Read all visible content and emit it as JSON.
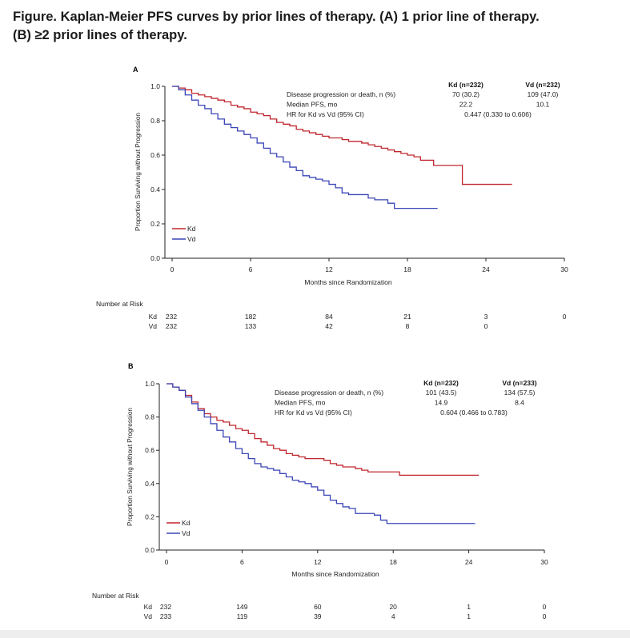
{
  "figure": {
    "title_line1": "Figure. Kaplan-Meier PFS curves by prior lines of therapy. (A) 1 prior line of therapy.",
    "title_line2": "(B) ≥2 prior lines of therapy."
  },
  "colors": {
    "kd": "#c0262d",
    "vd": "#3b46b6",
    "axis": "#222222"
  },
  "chart_data": [
    {
      "type": "line",
      "panel_label": "A",
      "xlabel": "Months since Randomization",
      "ylabel": "Proportion Surviving without Progression",
      "xlim": [
        0,
        30
      ],
      "ylim": [
        0.0,
        1.0
      ],
      "xticks": [
        0,
        6,
        12,
        18,
        24,
        30
      ],
      "xtick_labels": [
        "0",
        "6",
        "12",
        "18",
        "24",
        "30"
      ],
      "yticks": [
        0.0,
        0.2,
        0.4,
        0.6,
        0.8,
        1.0
      ],
      "ytick_labels": [
        "0.0",
        "0.2",
        "0.4",
        "0.6",
        "0.8",
        "1.0"
      ],
      "legend": [
        "Kd",
        "Vd"
      ],
      "series": [
        {
          "name": "Kd",
          "x": [
            0,
            0.5,
            1,
            1.5,
            2,
            2.5,
            3,
            3.5,
            4,
            4.5,
            5,
            5.5,
            6,
            6.5,
            7,
            7.5,
            8,
            8.5,
            9,
            9.5,
            10,
            10.5,
            11,
            11.5,
            12,
            12.5,
            13,
            13.5,
            14,
            14.5,
            15,
            15.5,
            16,
            16.5,
            17,
            17.5,
            18,
            18.5,
            19,
            19.5,
            20,
            20.5,
            21,
            21.5,
            22,
            22.2,
            23,
            24,
            25,
            26
          ],
          "y": [
            1.0,
            0.99,
            0.98,
            0.96,
            0.95,
            0.94,
            0.93,
            0.92,
            0.91,
            0.89,
            0.88,
            0.87,
            0.85,
            0.84,
            0.83,
            0.81,
            0.79,
            0.78,
            0.77,
            0.75,
            0.74,
            0.73,
            0.72,
            0.71,
            0.7,
            0.7,
            0.69,
            0.68,
            0.68,
            0.67,
            0.66,
            0.65,
            0.64,
            0.63,
            0.62,
            0.61,
            0.6,
            0.59,
            0.57,
            0.57,
            0.54,
            0.54,
            0.54,
            0.54,
            0.54,
            0.43,
            0.43,
            0.43,
            0.43,
            0.43
          ]
        },
        {
          "name": "Vd",
          "x": [
            0,
            0.5,
            1,
            1.5,
            2,
            2.5,
            3,
            3.5,
            4,
            4.5,
            5,
            5.5,
            6,
            6.5,
            7,
            7.5,
            8,
            8.5,
            9,
            9.5,
            10,
            10.5,
            11,
            11.5,
            12,
            12.5,
            13,
            13.5,
            14,
            14.5,
            15,
            15.5,
            16,
            16.5,
            17,
            17.5,
            18,
            18.5,
            19,
            19.5,
            20.3
          ],
          "y": [
            1.0,
            0.98,
            0.95,
            0.92,
            0.89,
            0.87,
            0.84,
            0.81,
            0.78,
            0.76,
            0.74,
            0.72,
            0.7,
            0.67,
            0.64,
            0.61,
            0.59,
            0.56,
            0.53,
            0.51,
            0.48,
            0.47,
            0.46,
            0.45,
            0.43,
            0.41,
            0.38,
            0.37,
            0.37,
            0.37,
            0.35,
            0.34,
            0.34,
            0.32,
            0.29,
            0.29,
            0.29,
            0.29,
            0.29,
            0.29,
            0.29
          ]
        }
      ],
      "stats_table": {
        "col_kd": "Kd (n=232)",
        "col_vd": "Vd (n=232)",
        "rows": [
          {
            "label": "Disease progression or death, n (%)",
            "kd": "70 (30.2)",
            "vd": "109 (47.0)"
          },
          {
            "label": "Median PFS, mo",
            "kd": "22.2",
            "vd": "10.1"
          }
        ],
        "hr_label": "HR for Kd vs Vd (95% CI)",
        "hr_value": "0.447 (0.330 to 0.606)"
      },
      "risk_table": {
        "title": "Number at Risk",
        "rows": [
          {
            "name": "Kd",
            "values": [
              "232",
              "182",
              "84",
              "21",
              "3",
              "0"
            ]
          },
          {
            "name": "Vd",
            "values": [
              "232",
              "133",
              "42",
              "8",
              "0",
              ""
            ]
          }
        ]
      }
    },
    {
      "type": "line",
      "panel_label": "B",
      "xlabel": "Months since Randomization",
      "ylabel": "Proportion Surviving without Progression",
      "xlim": [
        0,
        30
      ],
      "ylim": [
        0.0,
        1.0
      ],
      "xticks": [
        0,
        6,
        12,
        18,
        24,
        30
      ],
      "xtick_labels": [
        "0",
        "6",
        "12",
        "18",
        "24",
        "30"
      ],
      "yticks": [
        0.0,
        0.2,
        0.4,
        0.6,
        0.8,
        1.0
      ],
      "ytick_labels": [
        "0.0",
        "0.2",
        "0.4",
        "0.6",
        "0.8",
        "1.0"
      ],
      "legend": [
        "Kd",
        "Vd"
      ],
      "series": [
        {
          "name": "Kd",
          "x": [
            0,
            0.5,
            1,
            1.5,
            2,
            2.5,
            3,
            3.5,
            4,
            4.5,
            5,
            5.5,
            6,
            6.5,
            7,
            7.5,
            8,
            8.5,
            9,
            9.5,
            10,
            10.5,
            11,
            11.5,
            12,
            12.5,
            13,
            13.5,
            14,
            14.5,
            15,
            15.5,
            16,
            16.5,
            17,
            17.5,
            18,
            18.5,
            19,
            20,
            21,
            22,
            23,
            24,
            24.8
          ],
          "y": [
            1.0,
            0.98,
            0.96,
            0.93,
            0.89,
            0.85,
            0.82,
            0.8,
            0.78,
            0.77,
            0.75,
            0.73,
            0.72,
            0.7,
            0.67,
            0.65,
            0.63,
            0.61,
            0.6,
            0.58,
            0.57,
            0.56,
            0.55,
            0.55,
            0.55,
            0.54,
            0.52,
            0.51,
            0.5,
            0.5,
            0.49,
            0.48,
            0.47,
            0.47,
            0.47,
            0.47,
            0.47,
            0.45,
            0.45,
            0.45,
            0.45,
            0.45,
            0.45,
            0.45,
            0.45
          ]
        },
        {
          "name": "Vd",
          "x": [
            0,
            0.5,
            1,
            1.5,
            2,
            2.5,
            3,
            3.5,
            4,
            4.5,
            5,
            5.5,
            6,
            6.5,
            7,
            7.5,
            8,
            8.5,
            9,
            9.5,
            10,
            10.5,
            11,
            11.5,
            12,
            12.5,
            13,
            13.5,
            14,
            14.5,
            15,
            15.5,
            16,
            16.5,
            17,
            17.5,
            18,
            18.5,
            19,
            20,
            21,
            22,
            23,
            24,
            24.5
          ],
          "y": [
            1.0,
            0.98,
            0.96,
            0.92,
            0.88,
            0.84,
            0.8,
            0.76,
            0.72,
            0.68,
            0.65,
            0.61,
            0.58,
            0.55,
            0.52,
            0.5,
            0.49,
            0.48,
            0.46,
            0.44,
            0.42,
            0.41,
            0.4,
            0.38,
            0.36,
            0.33,
            0.3,
            0.28,
            0.26,
            0.25,
            0.22,
            0.22,
            0.22,
            0.21,
            0.18,
            0.16,
            0.16,
            0.16,
            0.16,
            0.16,
            0.16,
            0.16,
            0.16,
            0.16,
            0.16
          ]
        }
      ],
      "stats_table": {
        "col_kd": "Kd (n=232)",
        "col_vd": "Vd (n=233)",
        "rows": [
          {
            "label": "Disease progression or death, n (%)",
            "kd": "101 (43.5)",
            "vd": "134 (57.5)"
          },
          {
            "label": "Median PFS, mo",
            "kd": "14.9",
            "vd": "8.4"
          }
        ],
        "hr_label": "HR for Kd vs Vd (95% CI)",
        "hr_value": "0.604 (0.466 to 0.783)"
      },
      "risk_table": {
        "title": "Number at Risk",
        "rows": [
          {
            "name": "Kd",
            "values": [
              "232",
              "149",
              "60",
              "20",
              "1",
              "0"
            ]
          },
          {
            "name": "Vd",
            "values": [
              "233",
              "119",
              "39",
              "4",
              "1",
              "0"
            ]
          }
        ]
      }
    }
  ]
}
